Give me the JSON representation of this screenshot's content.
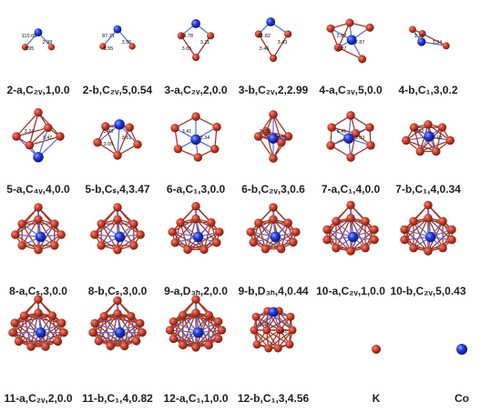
{
  "figure": {
    "colors": {
      "k_atom": "#b5352a",
      "co_atom": "#1d2fc9",
      "bond": "#a0392c",
      "label": "#222222"
    },
    "legend": [
      {
        "symbol": "K",
        "atom": "k"
      },
      {
        "symbol": "Co",
        "atom": "co"
      }
    ],
    "structures": [
      {
        "label": "2-a,C₂ᵥ,1,0.0",
        "values": [
          "110.09",
          "2.98",
          "3.95"
        ]
      },
      {
        "label": "2-b,C₂ᵥ,5,0.54",
        "values": [
          "87.71",
          "3.55",
          "3.55"
        ]
      },
      {
        "label": "3-a,C₂ᵥ,2,0.0",
        "values": [
          "84.78",
          "3.11",
          "3.65"
        ]
      },
      {
        "label": "3-b,C₂ᵥ,2,2.99",
        "values": [
          "81.82",
          "3.43",
          "3.46"
        ]
      },
      {
        "label": "4-a,C₃ᵥ,5,0.0",
        "values": [
          "2.87",
          "2.87",
          "2.87"
        ]
      },
      {
        "label": "4-b,C₁,3,0.2",
        "values": [
          "3.16",
          "3.34"
        ]
      },
      {
        "label": "5-a,C₄ᵥ,4,0.0",
        "values": [
          "3.24",
          "3.47"
        ]
      },
      {
        "label": "5-b,Cₛ,4,3.47",
        "values": [
          "3.43",
          "3.61",
          "3.05"
        ]
      },
      {
        "label": "6-a,C₁,3,0.0",
        "values": [
          "3.41",
          "3.34"
        ]
      },
      {
        "label": "6-b,C₂ᵥ,3,0.6",
        "values": [
          "3.05",
          "3.15"
        ]
      },
      {
        "label": "7-a,C₁,4,0.0",
        "values": [
          "3.41",
          "3.03"
        ]
      },
      {
        "label": "7-b,C₁,4,0.34",
        "values": [
          "3.12",
          "3.18"
        ]
      },
      {
        "label": "8-a,Cₛ,3,0.0",
        "values": []
      },
      {
        "label": "8-b,Cₛ,3,0.0",
        "values": []
      },
      {
        "label": "9-a,D₃ₕ,2,0.0",
        "values": []
      },
      {
        "label": "9-b,D₃ₕ,4,0.44",
        "values": []
      },
      {
        "label": "10-a,C₂ᵥ,1,0.0",
        "values": []
      },
      {
        "label": "10-b,C₂ᵥ,5,0.43",
        "values": []
      },
      {
        "label": "11-a,C₂ᵥ,2,0.0",
        "values": []
      },
      {
        "label": "11-b,C₁,4,0.82",
        "values": []
      },
      {
        "label": "12-a,C₁,1,0.0",
        "values": []
      },
      {
        "label": "12-b,C₁,3,4.56",
        "values": [
          "3.47",
          "3.91"
        ]
      }
    ]
  }
}
